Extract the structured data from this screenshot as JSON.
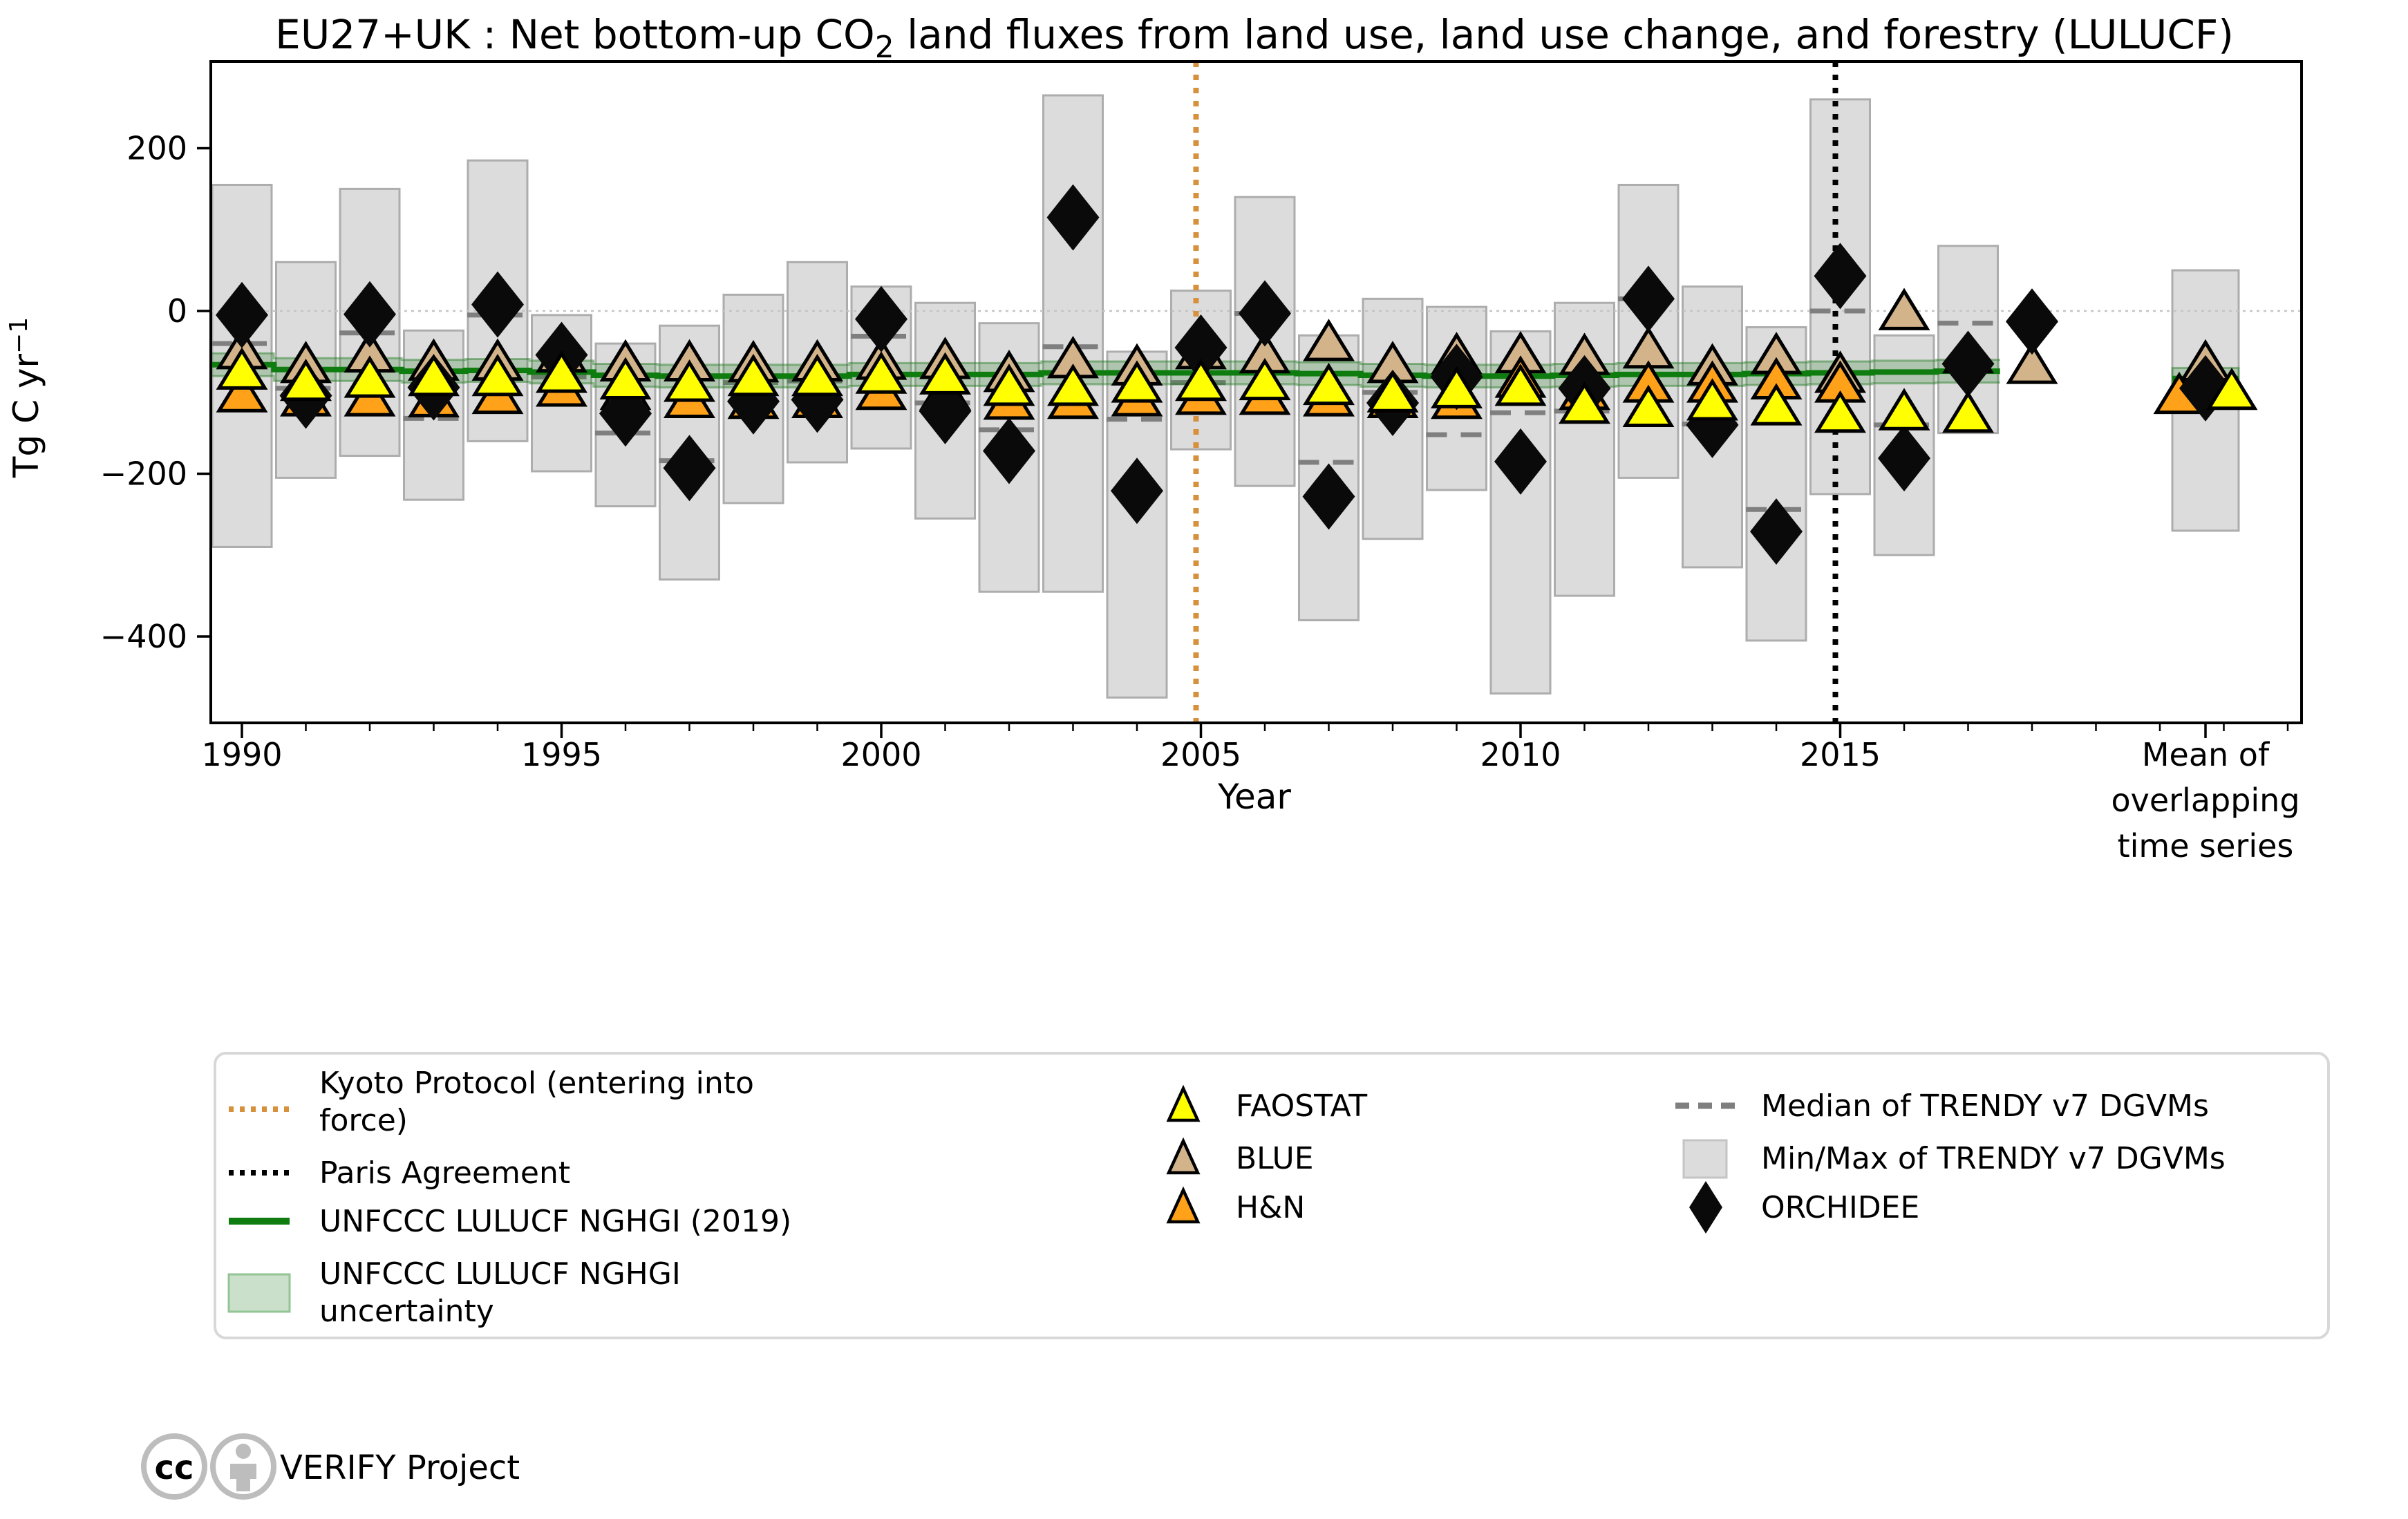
{
  "title": {
    "prefix": "EU27+UK : Net bottom-up CO",
    "sub": "2",
    "suffix": " land fluxes from land use, land use change, and forestry (LULUCF)"
  },
  "axes": {
    "ylabel": {
      "main": "Tg C yr",
      "sup": "−1"
    },
    "xlabel": "Year",
    "y_ticks": [
      {
        "value": 200,
        "label": "200"
      },
      {
        "value": 0,
        "label": "0"
      },
      {
        "value": -200,
        "label": "−200"
      },
      {
        "value": -400,
        "label": "−400"
      }
    ],
    "x_major_ticks": [
      {
        "year": 1990,
        "label": "1990"
      },
      {
        "year": 1995,
        "label": "1995"
      },
      {
        "year": 2000,
        "label": "2000"
      },
      {
        "year": 2005,
        "label": "2005"
      },
      {
        "year": 2010,
        "label": "2010"
      },
      {
        "year": 2015,
        "label": "2015"
      }
    ],
    "mean_axis_label_lines": [
      "Mean of",
      "overlapping",
      "time series"
    ]
  },
  "legend": {
    "col1": [
      {
        "id": "kyoto",
        "lines": [
          "Kyoto Protocol (entering into",
          "force)"
        ]
      },
      {
        "id": "paris",
        "lines": [
          "Paris Agreement"
        ]
      },
      {
        "id": "nghgi",
        "lines": [
          "UNFCCC LULUCF NGHGI (2019)"
        ]
      },
      {
        "id": "nghgi-uncertainty",
        "lines": [
          "UNFCCC LULUCF NGHGI",
          "uncertainty"
        ]
      }
    ],
    "col2": [
      {
        "id": "faostat",
        "lines": [
          "FAOSTAT"
        ]
      },
      {
        "id": "blue",
        "lines": [
          "BLUE"
        ]
      },
      {
        "id": "hn",
        "lines": [
          "H&N"
        ]
      }
    ],
    "col3": [
      {
        "id": "trendy-median",
        "lines": [
          "Median of TRENDY v7 DGVMs"
        ]
      },
      {
        "id": "trendy-minmax",
        "lines": [
          "Min/Max of TRENDY v7 DGVMs"
        ]
      },
      {
        "id": "orchidee",
        "lines": [
          "ORCHIDEE"
        ]
      }
    ]
  },
  "footer": {
    "cc_text": "cc",
    "project": "VERIFY Project"
  },
  "colors": {
    "faostat": "#FFFF00",
    "blue": "#D3B48A",
    "hn": "#FFA219",
    "orchidee": "#0A0A0A",
    "nghgi_line": "#0E7C0E",
    "nghgi_band": "rgba(34,124,34,0.24)",
    "nghgi_band_edge": "rgba(34,124,34,0.45)",
    "trendy_bar_fill": "#DCDCDC",
    "trendy_bar_edge": "#ADADAD",
    "trendy_median": "#7F7F7F",
    "kyoto": "#D7903C",
    "paris": "#000000",
    "zero_line": "#C4C4C4",
    "footer_gray": "#BDBDBD"
  },
  "chart_data": {
    "type": "combo",
    "title": "EU27+UK : Net bottom-up CO2 land fluxes from land use, land use change, and forestry (LULUCF)",
    "xlabel": "Year",
    "ylabel": "Tg C yr−1",
    "ylim": [
      -505,
      305
    ],
    "grid": "zero-line-only",
    "legend_position": "bottom",
    "x_years": [
      1990,
      1991,
      1992,
      1993,
      1994,
      1995,
      1996,
      1997,
      1998,
      1999,
      2000,
      2001,
      2002,
      2003,
      2004,
      2005,
      2006,
      2007,
      2008,
      2009,
      2010,
      2011,
      2012,
      2013,
      2014,
      2015,
      2016,
      2017,
      2018
    ],
    "series": [
      {
        "name": "Min/Max of TRENDY v7 DGVMs",
        "type": "bar-range",
        "max": [
          155,
          60,
          150,
          -24,
          185,
          -5,
          -40,
          -18,
          20,
          60,
          30,
          10,
          -15,
          265,
          -50,
          25,
          140,
          -30,
          15,
          5,
          -25,
          10,
          155,
          30,
          -20,
          260,
          -30,
          80,
          null
        ],
        "min": [
          -290,
          -205,
          -178,
          -232,
          -160,
          -197,
          -240,
          -330,
          -236,
          -186,
          -169,
          -255,
          -345,
          -345,
          -475,
          -170,
          -215,
          -380,
          -280,
          -220,
          -470,
          -350,
          -205,
          -315,
          -405,
          -225,
          -300,
          -150,
          null
        ]
      },
      {
        "name": "Median of TRENDY v7 DGVMs",
        "type": "dash",
        "values": [
          -40,
          -95,
          -27,
          -132,
          -5,
          -81,
          -150,
          -184,
          -88,
          -86,
          -31,
          -113,
          -146,
          -44,
          -133,
          -88,
          -3,
          -186,
          -100,
          -152,
          -125,
          -123,
          15,
          -139,
          -244,
          0,
          -140,
          -15,
          null
        ]
      },
      {
        "name": "UNFCCC LULUCF NGHGI (2019)",
        "type": "line",
        "uncertainty_halfwidth": 14,
        "values": [
          -66,
          -72,
          -72,
          -74,
          -73,
          -75,
          -79,
          -80,
          -80,
          -80,
          -78,
          -78,
          -78,
          -76,
          -76,
          -76,
          -76,
          -77,
          -79,
          -80,
          -80,
          -79,
          -78,
          -78,
          -77,
          -76,
          -75,
          -74,
          null
        ]
      },
      {
        "name": "BLUE",
        "type": "scatter",
        "marker": "triangle",
        "values": [
          -50,
          -67,
          -54,
          -64,
          -64,
          -54,
          -65,
          -65,
          -66,
          -65,
          -63,
          -62,
          -78,
          -61,
          -70,
          -50,
          -55,
          -40,
          -67,
          -56,
          -55,
          -57,
          -49,
          -70,
          -56,
          -79,
          -2,
          -55,
          -68
        ]
      },
      {
        "name": "H&N",
        "type": "scatter",
        "marker": "triangle",
        "values": [
          -103,
          -108,
          -108,
          -109,
          -105,
          -96,
          -100,
          -110,
          -111,
          -110,
          -100,
          -100,
          -112,
          -111,
          -108,
          -106,
          -106,
          -108,
          -110,
          -111,
          -85,
          -100,
          -91,
          -91,
          -87,
          -91,
          null,
          null,
          null
        ]
      },
      {
        "name": "ORCHIDEE",
        "type": "scatter",
        "marker": "diamond",
        "values": [
          -5,
          -104,
          -4,
          -94,
          8,
          -54,
          -126,
          -193,
          -111,
          -109,
          -10,
          -123,
          -172,
          115,
          -221,
          -45,
          -3,
          -228,
          -113,
          -81,
          -185,
          -95,
          15,
          -140,
          -271,
          43,
          -181,
          -65,
          -13
        ]
      },
      {
        "name": "FAOSTAT",
        "type": "scatter",
        "marker": "triangle",
        "values": [
          -75,
          -89,
          -85,
          -83,
          -83,
          -79,
          -87,
          -90,
          -83,
          -83,
          -80,
          -81,
          -95,
          -95,
          -91,
          -89,
          -88,
          -94,
          -103,
          -98,
          -95,
          -117,
          -121,
          -113,
          -119,
          -128,
          -125,
          -128,
          null
        ]
      }
    ],
    "events": [
      {
        "label": "Kyoto Protocol (entering into force)",
        "year": 2005
      },
      {
        "label": "Paris Agreement",
        "year": 2015
      }
    ],
    "mean_column": {
      "label": "Mean of overlapping time series",
      "bar_max": 50,
      "bar_min": -270,
      "nghgi": -83,
      "nghgi_halfwidth": 13,
      "blue": -65,
      "faostat": -100,
      "hn": -105,
      "orchidee": -95
    }
  }
}
